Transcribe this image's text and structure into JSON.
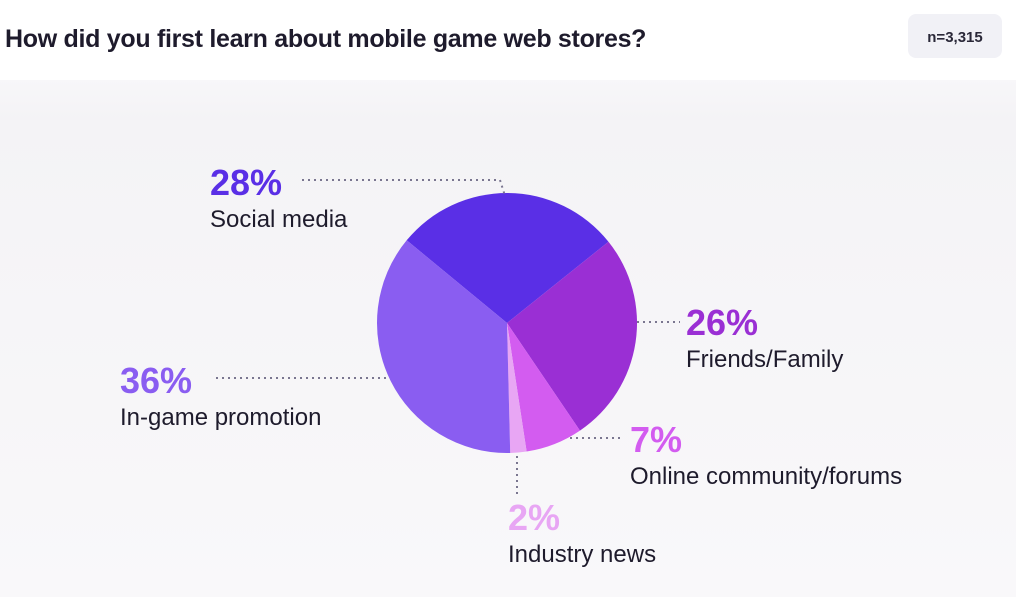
{
  "chart_data": {
    "type": "pie",
    "title": "How did you first learn about mobile game web stores?",
    "note": "n=3,315",
    "categories": [
      "Social media",
      "Friends/Family",
      "Online community/forums",
      "Industry news",
      "In-game promotion"
    ],
    "values": [
      28,
      26,
      7,
      2,
      36
    ],
    "value_labels": [
      "28%",
      "26%",
      "7%",
      "2%",
      "36%"
    ],
    "colors": [
      "#5a2fe6",
      "#9a2fd4",
      "#d35cf0",
      "#e8a6f4",
      "#8a5df1"
    ]
  }
}
